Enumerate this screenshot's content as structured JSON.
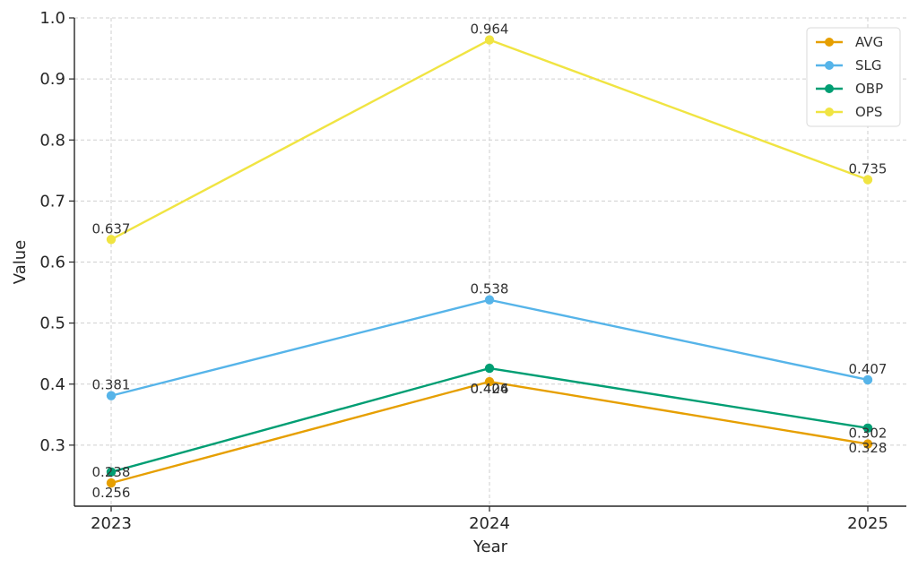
{
  "chart_data": {
    "type": "line",
    "title": "",
    "xlabel": "Year",
    "ylabel": "Value",
    "categories": [
      "2023",
      "2024",
      "2025"
    ],
    "ylim": [
      0.2,
      1.0
    ],
    "yticks": [
      "0.3",
      "0.4",
      "0.5",
      "0.6",
      "0.7",
      "0.8",
      "0.9",
      "1.0"
    ],
    "grid": true,
    "legend_position": "top-right",
    "series": [
      {
        "name": "AVG",
        "color": "#E69F00",
        "values": [
          0.238,
          0.404,
          0.302
        ]
      },
      {
        "name": "SLG",
        "color": "#56B4E9",
        "values": [
          0.381,
          0.538,
          0.407
        ]
      },
      {
        "name": "OBP",
        "color": "#009E73",
        "values": [
          0.256,
          0.426,
          0.328
        ]
      },
      {
        "name": "OPS",
        "color": "#F0E442",
        "values": [
          0.637,
          0.964,
          0.735
        ]
      }
    ],
    "data_labels": [
      [
        "0.238",
        "0.404",
        "0.302"
      ],
      [
        "0.381",
        "0.538",
        "0.407"
      ],
      [
        "0.256",
        "0.426",
        "0.328"
      ],
      [
        "0.637",
        "0.964",
        "0.735"
      ]
    ]
  }
}
